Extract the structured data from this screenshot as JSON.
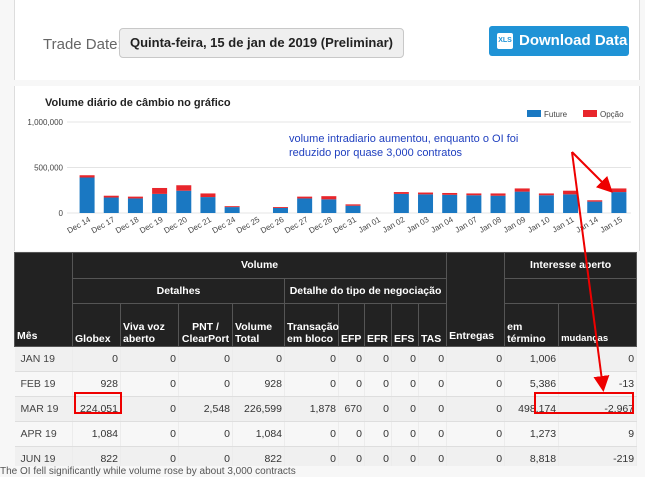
{
  "header": {
    "trade_date_label": "Trade Date:",
    "trade_date_value": "Quinta-feira, 15 de jan de 2019 (Preliminar)",
    "download_label": "Download Data",
    "download_icon_text": "XLS"
  },
  "chart": {
    "title": "Volume diário de câmbio no gráfico",
    "annotation_line1": "volume intradiario aumentou, enquanto o OI foi",
    "annotation_line2": "reduzido por quase 3,000 contratos",
    "colors": {
      "future": "#1a78c2",
      "option": "#e8262c",
      "grid": "#e4e4e4",
      "annotation": "#1f3fbf"
    }
  },
  "chart_data": {
    "type": "bar",
    "title": "Volume diário de câmbio no gráfico",
    "categories": [
      "Dec 14",
      "Dec 17",
      "Dec 18",
      "Dec 19",
      "Dec 20",
      "Dec 21",
      "Dec 24",
      "Dec 25",
      "Dec 26",
      "Dec 27",
      "Dec 28",
      "Dec 31",
      "Jan 01",
      "Jan 02",
      "Jan 03",
      "Jan 04",
      "Jan 07",
      "Jan 08",
      "Jan 09",
      "Jan 10",
      "Jan 11",
      "Jan 14",
      "Jan 15"
    ],
    "series": [
      {
        "name": "Future",
        "values": [
          390000,
          170000,
          160000,
          210000,
          245000,
          175000,
          65000,
          0,
          55000,
          160000,
          150000,
          80000,
          0,
          210000,
          205000,
          200000,
          195000,
          190000,
          235000,
          195000,
          205000,
          125000,
          230000
        ]
      },
      {
        "name": "Opção",
        "values": [
          25000,
          20000,
          20000,
          65000,
          60000,
          40000,
          10000,
          0,
          10000,
          20000,
          35000,
          15000,
          0,
          20000,
          20000,
          20000,
          20000,
          25000,
          35000,
          20000,
          40000,
          15000,
          40000
        ]
      }
    ],
    "yticks": [
      "1,000,000",
      "500,000",
      "0"
    ],
    "ylim": [
      0,
      1000000
    ],
    "stacked": true,
    "legend_position": "top-right"
  },
  "table": {
    "group_headers": {
      "volume": "Volume",
      "interesse": "Interesse aberto",
      "detalhes": "Detalhes",
      "detalhe_tipo": "Detalhe do tipo de negociação"
    },
    "columns": [
      "Mês",
      "Globex",
      "Viva voz aberto",
      "PNT / ClearPort",
      "Volume Total",
      "Transação em bloco",
      "EFP",
      "EFR",
      "EFS",
      "TAS",
      "Entregas",
      "em término",
      "mudanças"
    ],
    "rows": [
      [
        "JAN 19",
        "0",
        "0",
        "0",
        "0",
        "0",
        "0",
        "0",
        "0",
        "0",
        "0",
        "1,006",
        "0"
      ],
      [
        "FEB 19",
        "928",
        "0",
        "0",
        "928",
        "0",
        "0",
        "0",
        "0",
        "0",
        "0",
        "5,386",
        "-13"
      ],
      [
        "MAR 19",
        "224,051",
        "0",
        "2,548",
        "226,599",
        "1,878",
        "670",
        "0",
        "0",
        "0",
        "0",
        "498,174",
        "-2,967"
      ],
      [
        "APR 19",
        "1,084",
        "0",
        "0",
        "1,084",
        "0",
        "0",
        "0",
        "0",
        "0",
        "0",
        "1,273",
        "9"
      ],
      [
        "JUN 19",
        "822",
        "0",
        "0",
        "822",
        "0",
        "0",
        "0",
        "0",
        "0",
        "0",
        "8,818",
        "-219"
      ]
    ]
  },
  "footer": {
    "note": "The OI fell significantly while volume rose by about 3,000 contracts"
  }
}
